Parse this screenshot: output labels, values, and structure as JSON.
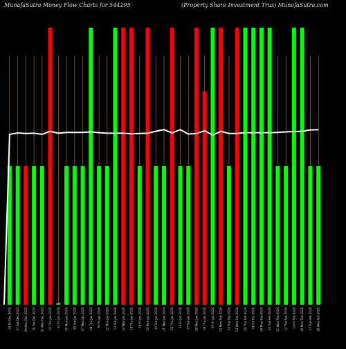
{
  "header": {
    "left_title": "MunafaSutra  Money Flow  Charts for 544295",
    "right_title": "(Property Share Investment Trus) MunafaSutra.com"
  },
  "colors": {
    "background": "#000000",
    "up": "#00ff00",
    "down": "#ff0000",
    "line": "#ffffff",
    "vgrid": "#b8860b"
  },
  "chart_data": {
    "type": "bar",
    "title": "MunafaSutra  Money Flow  Charts for 544295",
    "subtitle": "(Property Share Investment Trus) MunafaSutra.com",
    "grid": "vertical",
    "ylim": [
      0,
      100
    ],
    "series": [
      {
        "name": "",
        "values": [
          50,
          50,
          50,
          50,
          50,
          100,
          0.5,
          50,
          50,
          50,
          100,
          50,
          50,
          100,
          100,
          100,
          50,
          100,
          50,
          50,
          100,
          50,
          50,
          100,
          77,
          100,
          100,
          50,
          100,
          100,
          100,
          100,
          100,
          50,
          50,
          100,
          100,
          50,
          50
        ],
        "colors": [
          "up",
          "up",
          "down",
          "up",
          "up",
          "down",
          "up",
          "up",
          "up",
          "up",
          "up",
          "up",
          "up",
          "up",
          "down",
          "down",
          "up",
          "down",
          "up",
          "up",
          "down",
          "up",
          "up",
          "down",
          "down",
          "up",
          "down",
          "up",
          "down",
          "up",
          "up",
          "up",
          "up",
          "up",
          "up",
          "up",
          "up",
          "up",
          "up"
        ]
      },
      {
        "name": "",
        "type": "line",
        "values": [
          61.5,
          62,
          61.8,
          61.9,
          61.5,
          62.6,
          61.9,
          62.2,
          62.2,
          62.2,
          62.4,
          62.1,
          61.9,
          61.9,
          61.9,
          61.7,
          61.8,
          61.9,
          62.6,
          63.2,
          62,
          63.2,
          61.6,
          61.8,
          62.8,
          61.2,
          62.6,
          61.8,
          61.8,
          62.1,
          62.1,
          62.1,
          62.1,
          62.2,
          62.4,
          62.5,
          62.6,
          63.1,
          63.2
        ]
      }
    ],
    "categories": [
      "26 Fri Dec 2025",
      "27 Sat Dec 2025",
      "29 Mon Dec 2025",
      "30 Tue Dec 2025",
      "31 Wed Dec 2025",
      "01 Thu Jan 2026",
      "02 Fri Jan 2026",
      "05 Mon Jan 2026",
      "06 Tue Jan 2026",
      "07 Wed Jan 2026",
      "08 Thu Jan 2026",
      "09 Fri Jan 2026",
      "12 Mon Jan 2026",
      "13 Tue Jan 2026",
      "14 Wed Jan 2026",
      "15 Thu Jan 2026",
      "16 Fri Jan 2026",
      "19 Mon Jan 2026",
      "20 Tue Jan 2026",
      "21 Wed Jan 2026",
      "22 Thu Jan 2026",
      "23 Fri Jan 2026",
      "27 Tue Jan 2026",
      "28 Wed Jan 2026",
      "29 Thu Jan 2026",
      "30 Fri Jan 2026",
      "02 Mon Feb 2026",
      "03 Tue Feb 2026",
      "04 Wed Feb 2026",
      "05 Thu Feb 2026",
      "06 Fri Feb 2026",
      "09 Mon Feb 2026",
      "10 Tue Feb 2026",
      "11 Wed Feb 2026",
      "12 Thu Feb 2026",
      "13 Fri Feb 2026",
      "16 Mon Feb 2026",
      "17 Tue Feb 2026",
      "18 Wed Feb 2026"
    ]
  }
}
